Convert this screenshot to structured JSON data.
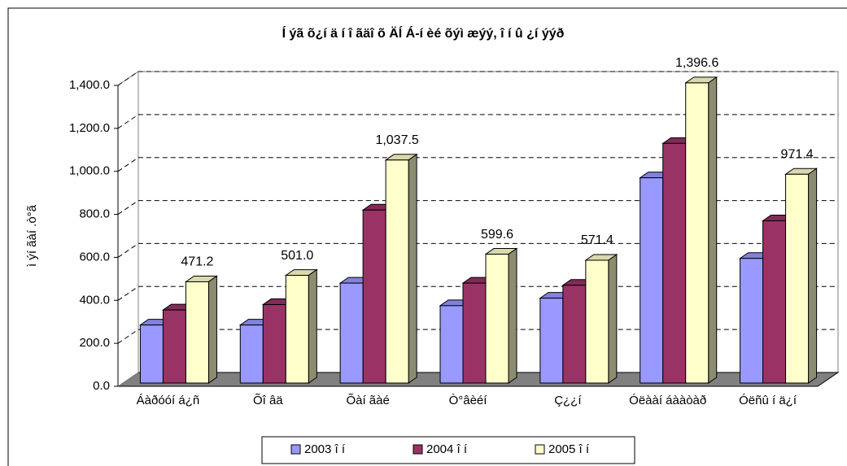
{
  "chart_data": {
    "type": "bar3d",
    "title": "Í ýã õ¿í ä í î ãäî õ ÄÍ Á-í èé õýì æýý, î í û ¿í ýýð",
    "ylabel": "ì ýí ãàí .ò°ã",
    "categories": [
      "Áàðóóí á¿ñ",
      "Õî âä",
      "Õàí ãàé",
      "Ò°âèéí",
      "Ç¿¿í",
      "Óëààí áààòàð",
      "Óëñû í ä¿í"
    ],
    "series": [
      {
        "name": "2003 î í",
        "color": "#9999ff",
        "values": [
          270,
          270,
          465,
          360,
          395,
          955,
          580
        ]
      },
      {
        "name": "2004 î í",
        "color": "#993366",
        "values": [
          340,
          365,
          805,
          465,
          455,
          1115,
          755
        ]
      },
      {
        "name": "2005 î í",
        "color": "#ffffcc",
        "values": [
          471.2,
          501.0,
          1037.5,
          599.6,
          571.4,
          1396.6,
          971.4
        ],
        "value_labels": [
          "471.2",
          "501.0",
          "1,037.5",
          "599.6",
          "571.4",
          "1,396.6",
          "971.4"
        ]
      }
    ],
    "ylim": [
      0,
      1400
    ],
    "yticks": [
      {
        "value": 0,
        "label": "0.0"
      },
      {
        "value": 200,
        "label": "200.0"
      },
      {
        "value": 400,
        "label": "400.0"
      },
      {
        "value": 600,
        "label": "600.0"
      },
      {
        "value": 800,
        "label": "800.0"
      },
      {
        "value": 1000,
        "label": "1,000.0"
      },
      {
        "value": 1200,
        "label": "1,200.0"
      },
      {
        "value": 1400,
        "label": "1,400.0"
      }
    ],
    "grid": true
  }
}
